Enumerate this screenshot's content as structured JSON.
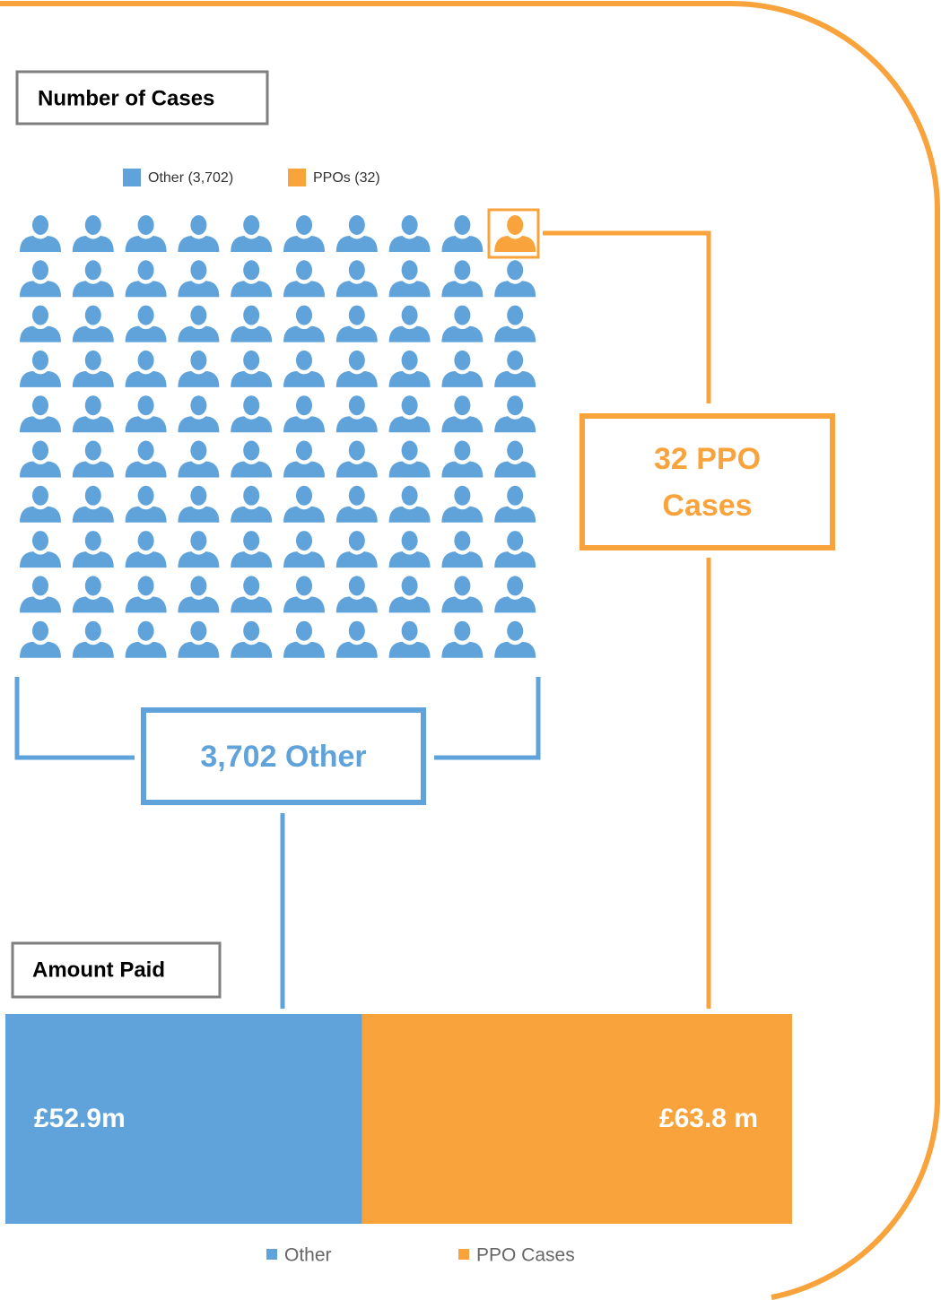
{
  "chart_data": [
    {
      "type": "pictogram",
      "title": "Number of Cases",
      "series": [
        {
          "name": "Other (3,702)",
          "color": "#5fa3da",
          "values": [
            99
          ]
        },
        {
          "name": "PPOs (32)",
          "color": "#f8a33c",
          "values": [
            1
          ]
        }
      ],
      "columns": 10,
      "annotations": [
        "32 PPO Cases",
        "3,702 Other"
      ]
    },
    {
      "type": "stacked_bar",
      "title": "Amount Paid",
      "orientation": "horizontal",
      "series": [
        {
          "name": "Other",
          "color": "#5fa3da",
          "values": [
            52.9
          ],
          "value_labels": [
            "£52.9m"
          ]
        },
        {
          "name": "PPO Cases",
          "color": "#f8a33c",
          "values": [
            63.8
          ],
          "value_labels": [
            "£63.8 m"
          ]
        }
      ]
    }
  ]
}
